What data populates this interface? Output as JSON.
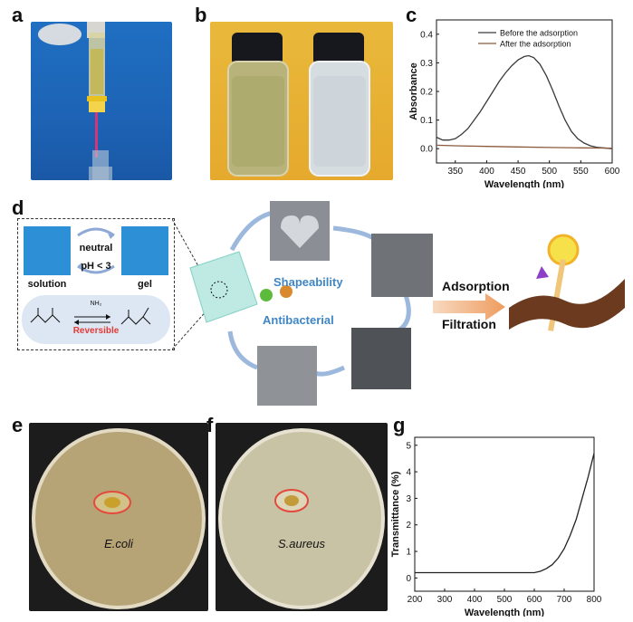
{
  "panels": {
    "a": {
      "letter": "a"
    },
    "b": {
      "letter": "b"
    },
    "c": {
      "letter": "c"
    },
    "d": {
      "letter": "d",
      "inset": {
        "top_condition": "neutral",
        "bottom_condition": "pH < 3",
        "left_label": "solution",
        "right_label": "gel",
        "reaction_label": "Reversible",
        "reagent": "NH₂"
      },
      "properties": [
        "Shapeability",
        "Antibacterial"
      ],
      "processes": [
        "Adsorption",
        "Filtration"
      ]
    },
    "e": {
      "letter": "e",
      "organism": "E.coli"
    },
    "f": {
      "letter": "f",
      "organism": "S.aureus"
    },
    "g": {
      "letter": "g"
    }
  },
  "chart_data": [
    {
      "panel": "c",
      "type": "line",
      "xlabel": "Wavelength (nm)",
      "ylabel": "Absorbance",
      "xlim": [
        320,
        600
      ],
      "ylim": [
        -0.05,
        0.45
      ],
      "xticks": [
        350,
        400,
        450,
        500,
        550,
        600
      ],
      "yticks": [
        0.0,
        0.1,
        0.2,
        0.3,
        0.4
      ],
      "xtick_labels": [
        "350",
        "400",
        "450",
        "500",
        "550",
        "600"
      ],
      "ytick_labels": [
        "0.0",
        "0.1",
        "0.2",
        "0.3",
        "0.4"
      ],
      "legend_position": "top-right",
      "series": [
        {
          "name": "Before the adsorption",
          "color": "#3a3a3a",
          "x": [
            320,
            330,
            340,
            350,
            360,
            370,
            380,
            390,
            400,
            410,
            420,
            430,
            440,
            450,
            460,
            467,
            475,
            485,
            495,
            505,
            515,
            525,
            535,
            545,
            555,
            565,
            575,
            585,
            600
          ],
          "y": [
            0.04,
            0.03,
            0.03,
            0.035,
            0.05,
            0.07,
            0.1,
            0.13,
            0.165,
            0.2,
            0.235,
            0.265,
            0.29,
            0.31,
            0.322,
            0.325,
            0.318,
            0.295,
            0.255,
            0.205,
            0.15,
            0.1,
            0.06,
            0.035,
            0.02,
            0.01,
            0.005,
            0.003,
            0.0
          ]
        },
        {
          "name": "After the adsorption",
          "color": "#8b5a3c",
          "x": [
            320,
            350,
            400,
            450,
            500,
            550,
            600
          ],
          "y": [
            0.012,
            0.01,
            0.008,
            0.006,
            0.004,
            0.003,
            0.002
          ]
        }
      ]
    },
    {
      "panel": "g",
      "type": "line",
      "xlabel": "Wavelength (nm)",
      "ylabel": "Transmittance (%)",
      "xlim": [
        200,
        800
      ],
      "ylim": [
        -0.5,
        5.3
      ],
      "xticks": [
        200,
        300,
        400,
        500,
        600,
        700,
        800
      ],
      "yticks": [
        0,
        1,
        2,
        3,
        4,
        5
      ],
      "xtick_labels": [
        "200",
        "300",
        "400",
        "500",
        "600",
        "700",
        "800"
      ],
      "ytick_labels": [
        "0",
        "1",
        "2",
        "3",
        "4",
        "5"
      ],
      "series": [
        {
          "color": "#222222",
          "x": [
            200,
            300,
            400,
            500,
            600,
            620,
            640,
            660,
            680,
            700,
            720,
            740,
            760,
            780,
            800
          ],
          "y": [
            0.2,
            0.2,
            0.2,
            0.2,
            0.2,
            0.25,
            0.35,
            0.5,
            0.75,
            1.1,
            1.6,
            2.2,
            3.0,
            3.8,
            4.7
          ]
        }
      ]
    }
  ]
}
